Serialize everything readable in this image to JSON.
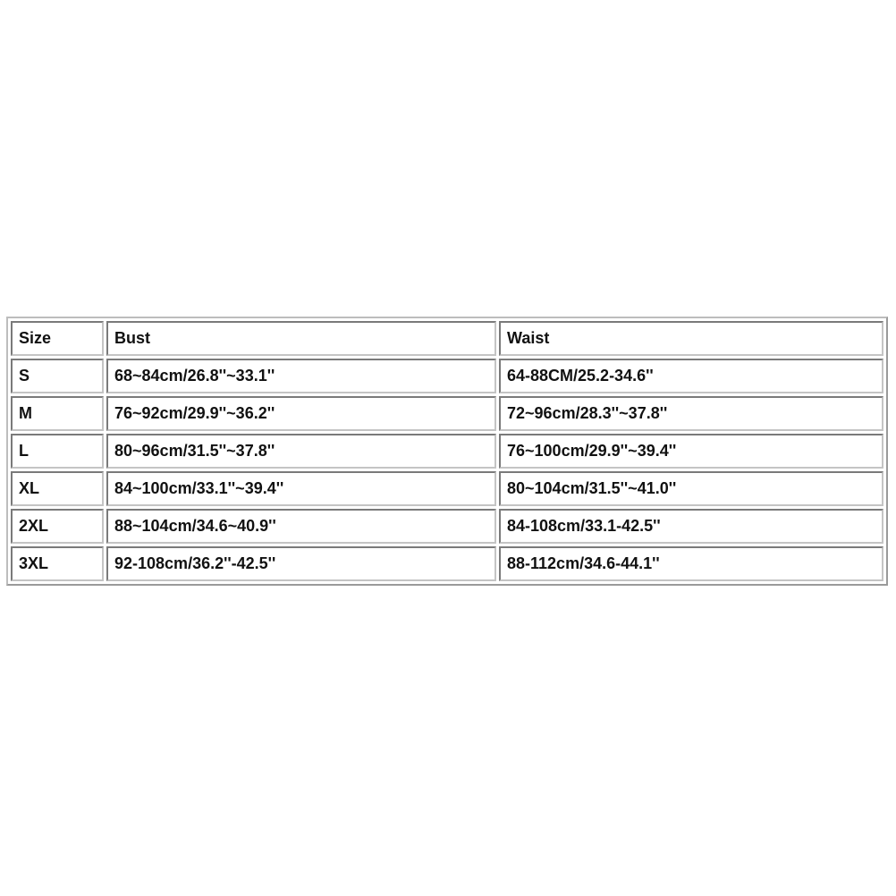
{
  "table": {
    "headers": [
      "Size",
      "Bust",
      "Waist"
    ],
    "rows": [
      [
        "S",
        "68~84cm/26.8''~33.1''",
        "64-88CM/25.2-34.6''"
      ],
      [
        "M",
        "76~92cm/29.9''~36.2''",
        "72~96cm/28.3''~37.8''"
      ],
      [
        "L",
        "80~96cm/31.5''~37.8''",
        "76~100cm/29.9''~39.4''"
      ],
      [
        "XL",
        "84~100cm/33.1''~39.4''",
        "80~104cm/31.5''~41.0''"
      ],
      [
        "2XL",
        "88~104cm/34.6~40.9''",
        "84-108cm/33.1-42.5''"
      ],
      [
        "3XL",
        "92-108cm/36.2''-42.5''",
        "88-112cm/34.6-44.1''"
      ]
    ]
  }
}
